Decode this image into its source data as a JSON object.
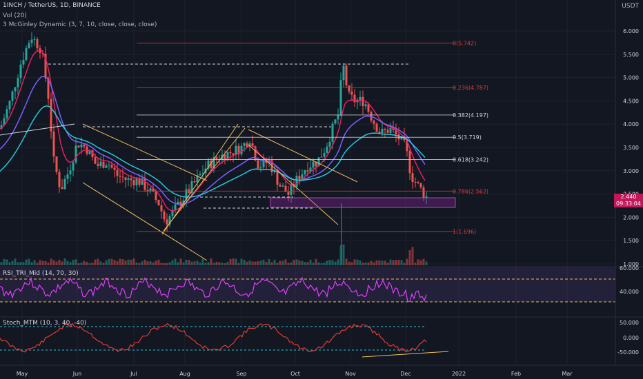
{
  "header": {
    "symbol": "1INCH / TetherUS, 1D, BINANCE",
    "vol_label": "Vol (20)",
    "mcginley_label": "3 McGinley Dynamic (3, 7, 10, close, close, close)",
    "currency": "USDT"
  },
  "price_axis": {
    "ticks": [
      "6.000",
      "5.500",
      "5.000",
      "4.500",
      "4.000",
      "3.500",
      "3.000",
      "2.500",
      "2.000",
      "1.500",
      "1.000"
    ],
    "current_price": "2.440",
    "countdown": "09:33:04"
  },
  "fib_levels": [
    {
      "label": "0(5.742)",
      "price": 5.742,
      "color": "#e53935"
    },
    {
      "label": "0.236(4.787)",
      "price": 4.787,
      "color": "#e53935"
    },
    {
      "label": "0.382(4.197)",
      "price": 4.197,
      "color": "#d1d4dc"
    },
    {
      "label": "0.5(3.719)",
      "price": 3.719,
      "color": "#d1d4dc"
    },
    {
      "label": "0.618(3.242)",
      "price": 3.242,
      "color": "#d1d4dc"
    },
    {
      "label": "0.786(2.562)",
      "price": 2.562,
      "color": "#e53935"
    },
    {
      "label": "1(1.696)",
      "price": 1.696,
      "color": "#e53935"
    }
  ],
  "rsi": {
    "title": "RSI_TRI_Mid (14, 70, 30)",
    "ticks": [
      "60.000",
      "40.000"
    ]
  },
  "stoch": {
    "title": "Stoch_MTM (10, 3, 40, -40)",
    "ticks": [
      "50.000",
      "0.000",
      "-50.000"
    ]
  },
  "time_axis": [
    "May",
    "Jun",
    "Jul",
    "Aug",
    "Sep",
    "Oct",
    "Nov",
    "Dec",
    "2022",
    "Feb",
    "Mar"
  ],
  "colors": {
    "background": "#131722",
    "up": "#26a69a",
    "down": "#ef5350",
    "grid": "#1e222d",
    "mcg_fast": "#e91e63",
    "mcg_mid": "#7b61ff",
    "mcg_slow": "#26c6da",
    "trend": "#f0c05a"
  }
}
